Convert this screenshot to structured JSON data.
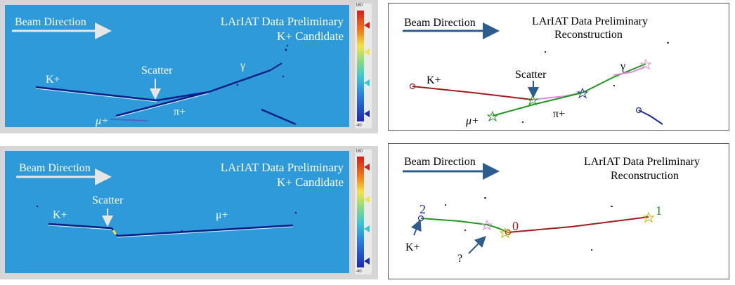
{
  "panel_tl": {
    "beam": "Beam Direction",
    "title1": "LArIAT Data Preliminary",
    "title2": "K+ Candidate",
    "k": "K+",
    "scatter": "Scatter",
    "gamma": "γ",
    "pi": "π+",
    "mu": "μ+",
    "scale_max": "160",
    "scale_min": "-40"
  },
  "panel_tr": {
    "beam": "Beam Direction",
    "title1": "LArIAT Data Preliminary",
    "title2": "Reconstruction",
    "k": "K+",
    "scatter": "Scatter",
    "gamma": "γ",
    "pi": "π+",
    "mu": "μ+"
  },
  "panel_bl": {
    "beam": "Beam Direction",
    "title1": "LArIAT Data Preliminary",
    "title2": "K+ Candidate",
    "k": "K+",
    "scatter": "Scatter",
    "mu": "μ+",
    "scale_max": "160",
    "scale_min": "-40"
  },
  "panel_br": {
    "beam": "Beam Direction",
    "title1": "LArIAT Data Preliminary",
    "title2": "Reconstruction",
    "k": "K+",
    "q": "?",
    "n2": "2",
    "n0": "0",
    "n1": "1"
  },
  "colors": {
    "evd_bg": "#2f9ad9",
    "kaon_track": "#a31c1c",
    "pion_track": "#1f9a1f",
    "muon_track": "#1f9a1f",
    "scatter_track": "#e08ae0",
    "other_track": "#1c2a9a",
    "arrow_blue": "#2e5c8e"
  }
}
